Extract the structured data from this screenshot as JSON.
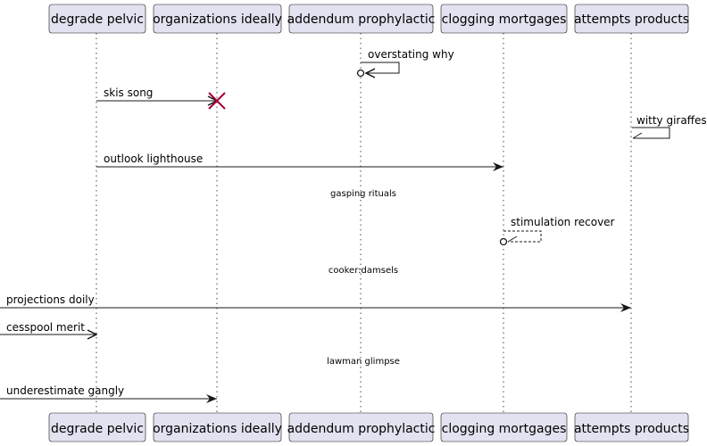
{
  "participants": [
    {
      "id": "p1",
      "name": "degrade pelvic"
    },
    {
      "id": "p2",
      "name": "organizations ideally"
    },
    {
      "id": "p3",
      "name": "addendum prophylactic"
    },
    {
      "id": "p4",
      "name": "clogging mortgages"
    },
    {
      "id": "p5",
      "name": "attempts products"
    }
  ],
  "events": [
    {
      "kind": "self",
      "from": "p3",
      "label": "overstating why",
      "line": "solid",
      "head": "open",
      "end": "circle"
    },
    {
      "kind": "message",
      "from": "p1",
      "to": "p2",
      "label": "skis song",
      "line": "solid",
      "head": "open",
      "end": "destroy"
    },
    {
      "kind": "self",
      "from": "p5",
      "label": "witty giraffes",
      "line": "solid",
      "head": "half",
      "end": "none"
    },
    {
      "kind": "message",
      "from": "p1",
      "to": "p4",
      "label": "outlook lighthouse",
      "line": "solid",
      "head": "filled",
      "end": "none"
    },
    {
      "kind": "delay",
      "label": "gasping rituals"
    },
    {
      "kind": "self",
      "from": "p4",
      "label": "stimulation recover",
      "line": "dashed",
      "head": "half",
      "end": "circle"
    },
    {
      "kind": "delay",
      "label": "cooker:damsels"
    },
    {
      "kind": "message",
      "from": "left-edge",
      "to": "p5",
      "label": "projections doily",
      "line": "solid",
      "head": "filled",
      "end": "none"
    },
    {
      "kind": "message",
      "from": "left-edge",
      "to": "p1",
      "label": "cesspool merit",
      "line": "solid",
      "head": "open",
      "end": "none"
    },
    {
      "kind": "delay",
      "label": "lawman glimpse"
    },
    {
      "kind": "message",
      "from": "left-edge",
      "to": "p2",
      "label": "underestimate gangly",
      "line": "solid",
      "head": "filled",
      "end": "none"
    }
  ],
  "colors": {
    "participant_fill": "#E2E2F0",
    "participant_border": "#181818",
    "lifeline": "#181818",
    "arrow": "#181818",
    "destroy": "#A80036"
  }
}
